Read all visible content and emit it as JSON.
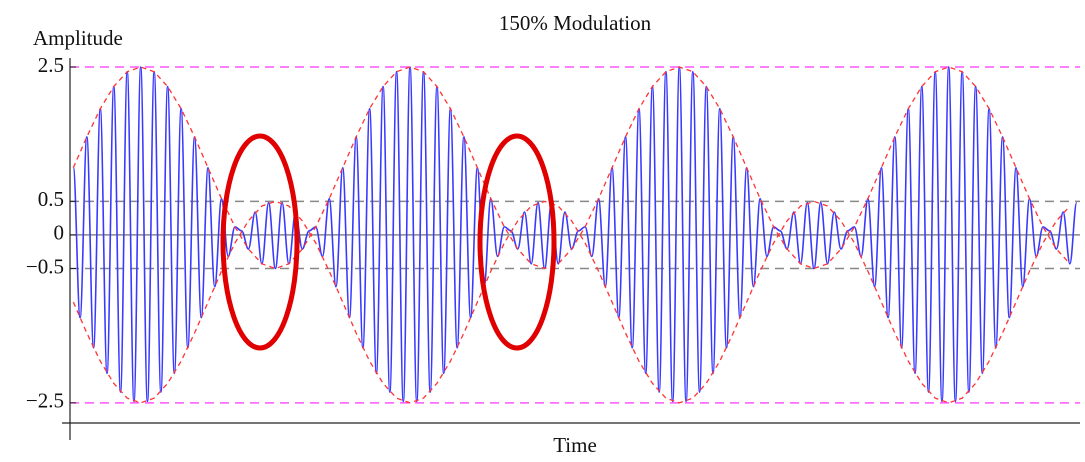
{
  "chart_data": {
    "type": "line",
    "title": "150% Modulation",
    "ylabel": "Amplitude",
    "xlabel": "Time",
    "xlim": [
      0,
      75
    ],
    "ylim": [
      -2.8,
      2.6
    ],
    "yticks": [
      2.5,
      0.5,
      0,
      {
        "value": -0.5,
        "label": "−0.5"
      },
      {
        "value": -2.5,
        "label": "−2.5"
      }
    ],
    "grid": false,
    "reference_lines": [
      {
        "value": 2.5,
        "color": "#ff55ff",
        "dashed": true
      },
      {
        "value": -2.5,
        "color": "#ff55ff",
        "dashed": true
      },
      {
        "value": 0.5,
        "color": "#888888",
        "dashed": true
      },
      {
        "value": -0.5,
        "color": "#888888",
        "dashed": true
      },
      {
        "value": 0,
        "color": "#888888",
        "dashed": false
      }
    ],
    "series": [
      {
        "color": "#3a3aff",
        "dashed": false,
        "smooth": true,
        "x": [
          0.25,
          0.75,
          1.25,
          1.75,
          2.25,
          2.75,
          3.25,
          3.75,
          4.25,
          4.75,
          5.25,
          5.75,
          6.25,
          6.75,
          7.25,
          7.75,
          8.25,
          8.75,
          9.25,
          9.75,
          10.25,
          10.75,
          11.25,
          11.75,
          12.25,
          12.75,
          13.25,
          13.75,
          14.25,
          14.75,
          15.25,
          15.75,
          16.25,
          16.75,
          17.25,
          17.75,
          18.25,
          18.75,
          19.25,
          19.75,
          20.25,
          20.75,
          21.25,
          21.75,
          22.25,
          22.75,
          23.25,
          23.75,
          24.25,
          24.75,
          25.25,
          25.75,
          26.25,
          26.75,
          27.25,
          27.75,
          28.25,
          28.75,
          29.25,
          29.75,
          30.25,
          30.75,
          31.25,
          31.75,
          32.25,
          32.75,
          33.25,
          33.75,
          34.25,
          34.75,
          35.25,
          35.75,
          36.25,
          36.75,
          37.25,
          37.75,
          38.25,
          38.75,
          39.25,
          39.75,
          40.25,
          40.75,
          41.25,
          41.75,
          42.25,
          42.75,
          43.25,
          43.75,
          44.25,
          44.75,
          45.25,
          45.75,
          46.25,
          46.75,
          47.25,
          47.75,
          48.25,
          48.75,
          49.25,
          49.75,
          50.25,
          50.75,
          51.25,
          51.75,
          52.25,
          52.75,
          53.25,
          53.75,
          54.25,
          54.75,
          55.25,
          55.75,
          56.25,
          56.75,
          57.25,
          57.75,
          58.25,
          58.75,
          59.25,
          59.75,
          60.25,
          60.75,
          61.25,
          61.75,
          62.25,
          62.75,
          63.25,
          63.75,
          64.25,
          64.75,
          65.25,
          65.75,
          66.25,
          66.75,
          67.25,
          67.75,
          68.25,
          68.75,
          69.25,
          69.75,
          70.25,
          70.75,
          71.25,
          71.75,
          72.25,
          72.75,
          73.25,
          73.75,
          74.25,
          74.75
        ],
        "values": [
          1,
          -1.23,
          1.46,
          -1.68,
          1.88,
          -2.06,
          2.21,
          -2.34,
          2.43,
          -2.48,
          2.5,
          -2.48,
          2.43,
          -2.34,
          2.21,
          -2.06,
          1.88,
          -1.68,
          1.46,
          -1.23,
          1,
          -0.77,
          0.54,
          -0.32,
          0.12,
          0.06,
          -0.21,
          0.34,
          -0.43,
          0.48,
          -0.5,
          0.48,
          -0.43,
          0.34,
          -0.21,
          0.06,
          0.12,
          -0.32,
          0.54,
          -0.77,
          1,
          -1.23,
          1.46,
          -1.68,
          1.88,
          -2.06,
          2.21,
          -2.34,
          2.43,
          -2.48,
          2.5,
          -2.48,
          2.43,
          -2.34,
          2.21,
          -2.06,
          1.88,
          -1.68,
          1.46,
          -1.23,
          1,
          -0.77,
          0.54,
          -0.32,
          0.12,
          0.06,
          -0.21,
          0.34,
          -0.43,
          0.48,
          -0.5,
          0.48,
          -0.43,
          0.34,
          -0.21,
          0.06,
          0.12,
          -0.32,
          0.54,
          -0.77,
          1,
          -1.23,
          1.46,
          -1.68,
          1.88,
          -2.06,
          2.21,
          -2.34,
          2.43,
          -2.48,
          2.5,
          -2.48,
          2.43,
          -2.34,
          2.21,
          -2.06,
          1.88,
          -1.68,
          1.46,
          -1.23,
          1,
          -0.77,
          0.54,
          -0.32,
          0.12,
          0.06,
          -0.21,
          0.34,
          -0.43,
          0.48,
          -0.5,
          0.48,
          -0.43,
          0.34,
          -0.21,
          0.06,
          0.12,
          -0.32,
          0.54,
          -0.77,
          1,
          -1.23,
          1.46,
          -1.68,
          1.88,
          -2.06,
          2.21,
          -2.34,
          2.43,
          -2.48,
          2.5,
          -2.48,
          2.43,
          -2.34,
          2.21,
          -2.06,
          1.88,
          -1.68,
          1.46,
          -1.23,
          1,
          -0.77,
          0.54,
          -0.32,
          0.12,
          0.06,
          -0.21,
          0.34,
          -0.43,
          0.48
        ]
      },
      {
        "color": "#ff3333",
        "dashed": true,
        "smooth": false,
        "x": [
          0.25,
          1.25,
          2.25,
          3.25,
          4.25,
          5.25,
          6.25,
          7.25,
          8.25,
          9.25,
          10.25,
          11.25,
          12.25,
          13.25,
          14.25,
          15.25,
          16.25,
          17.25,
          18.25,
          19.25,
          20.25,
          21.25,
          22.25,
          23.25,
          24.25,
          25.25,
          26.25,
          27.25,
          28.25,
          29.25,
          30.25,
          31.25,
          32.25,
          33.25,
          34.25,
          35.25,
          36.25,
          37.25,
          38.25,
          39.25,
          40.25,
          41.25,
          42.25,
          43.25,
          44.25,
          45.25,
          46.25,
          47.25,
          48.25,
          49.25,
          50.25,
          51.25,
          52.25,
          53.25,
          54.25,
          55.25,
          56.25,
          57.25,
          58.25,
          59.25,
          60.25,
          61.25,
          62.25,
          63.25,
          64.25,
          65.25,
          66.25,
          67.25,
          68.25,
          69.25,
          70.25,
          71.25,
          72.25,
          73.25,
          74.25
        ],
        "values": [
          1,
          1.46,
          1.88,
          2.21,
          2.43,
          2.5,
          2.43,
          2.21,
          1.88,
          1.46,
          1,
          0.54,
          0.12,
          -0.21,
          -0.43,
          -0.5,
          -0.43,
          -0.21,
          0.12,
          0.54,
          1,
          1.46,
          1.88,
          2.21,
          2.43,
          2.5,
          2.43,
          2.21,
          1.88,
          1.46,
          1,
          0.54,
          0.12,
          -0.21,
          -0.43,
          -0.5,
          -0.43,
          -0.21,
          0.12,
          0.54,
          1,
          1.46,
          1.88,
          2.21,
          2.43,
          2.5,
          2.43,
          2.21,
          1.88,
          1.46,
          1,
          0.54,
          0.12,
          -0.21,
          -0.43,
          -0.5,
          -0.43,
          -0.21,
          0.12,
          0.54,
          1,
          1.46,
          1.88,
          2.21,
          2.43,
          2.5,
          2.43,
          2.21,
          1.88,
          1.46,
          1,
          0.54,
          0.12,
          -0.21,
          -0.43
        ]
      },
      {
        "color": "#ff3333",
        "dashed": true,
        "smooth": false,
        "x": [
          0.25,
          1.25,
          2.25,
          3.25,
          4.25,
          5.25,
          6.25,
          7.25,
          8.25,
          9.25,
          10.25,
          11.25,
          12.25,
          13.25,
          14.25,
          15.25,
          16.25,
          17.25,
          18.25,
          19.25,
          20.25,
          21.25,
          22.25,
          23.25,
          24.25,
          25.25,
          26.25,
          27.25,
          28.25,
          29.25,
          30.25,
          31.25,
          32.25,
          33.25,
          34.25,
          35.25,
          36.25,
          37.25,
          38.25,
          39.25,
          40.25,
          41.25,
          42.25,
          43.25,
          44.25,
          45.25,
          46.25,
          47.25,
          48.25,
          49.25,
          50.25,
          51.25,
          52.25,
          53.25,
          54.25,
          55.25,
          56.25,
          57.25,
          58.25,
          59.25,
          60.25,
          61.25,
          62.25,
          63.25,
          64.25,
          65.25,
          66.25,
          67.25,
          68.25,
          69.25,
          70.25,
          71.25,
          72.25,
          73.25,
          74.25
        ],
        "values": [
          -1,
          -1.46,
          -1.88,
          -2.21,
          -2.43,
          -2.5,
          -2.43,
          -2.21,
          -1.88,
          -1.46,
          -1,
          -0.54,
          -0.12,
          0.21,
          0.43,
          0.5,
          0.43,
          0.21,
          -0.12,
          -0.54,
          -1,
          -1.46,
          -1.88,
          -2.21,
          -2.43,
          -2.5,
          -2.43,
          -2.21,
          -1.88,
          -1.46,
          -1,
          -0.54,
          -0.12,
          0.21,
          0.43,
          0.5,
          0.43,
          0.21,
          -0.12,
          -0.54,
          -1,
          -1.46,
          -1.88,
          -2.21,
          -2.43,
          -2.5,
          -2.43,
          -2.21,
          -1.88,
          -1.46,
          -1,
          -0.54,
          -0.12,
          0.21,
          0.43,
          0.5,
          0.43,
          0.21,
          -0.12,
          -0.54,
          -1,
          -1.46,
          -1.88,
          -2.21,
          -2.43,
          -2.5,
          -2.43,
          -2.21,
          -1.88,
          -1.46,
          -1,
          -0.54,
          -0.12,
          0.21,
          0.43
        ]
      }
    ]
  }
}
